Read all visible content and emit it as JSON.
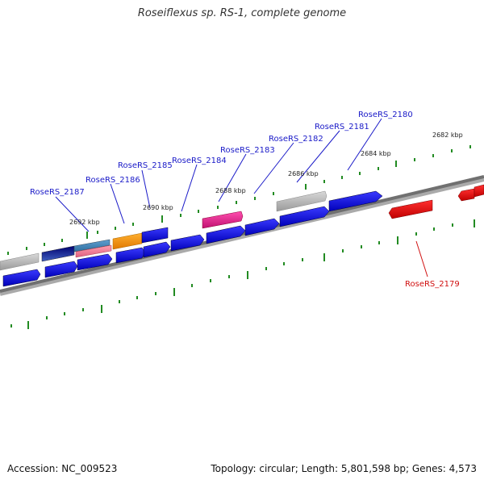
{
  "title": "Roseiflexus sp. RS-1, complete genome",
  "footer": {
    "accession": "Accession: NC_009523",
    "summary": "Topology: circular; Length: 5,801,598 bp; Genes: 4,573"
  },
  "colors": {
    "backbone": "#808080",
    "tick": "#228B22",
    "label_blue": "#1a1ac8",
    "label_red": "#d01010"
  },
  "scale_labels": [
    "2692 kbp",
    "2690 kbp",
    "2688 kbp",
    "2686 kbp",
    "2684 kbp",
    "2682 kbp"
  ],
  "gene_labels": [
    {
      "text": "RoseRS_2187",
      "color": "blue"
    },
    {
      "text": "RoseRS_2186",
      "color": "blue"
    },
    {
      "text": "RoseRS_2185",
      "color": "blue"
    },
    {
      "text": "RoseRS_2184",
      "color": "blue"
    },
    {
      "text": "RoseRS_2183",
      "color": "blue"
    },
    {
      "text": "RoseRS_2182",
      "color": "blue"
    },
    {
      "text": "RoseRS_2181",
      "color": "blue"
    },
    {
      "text": "RoseRS_2180",
      "color": "blue"
    },
    {
      "text": "RoseRS_2179",
      "color": "red"
    }
  ]
}
